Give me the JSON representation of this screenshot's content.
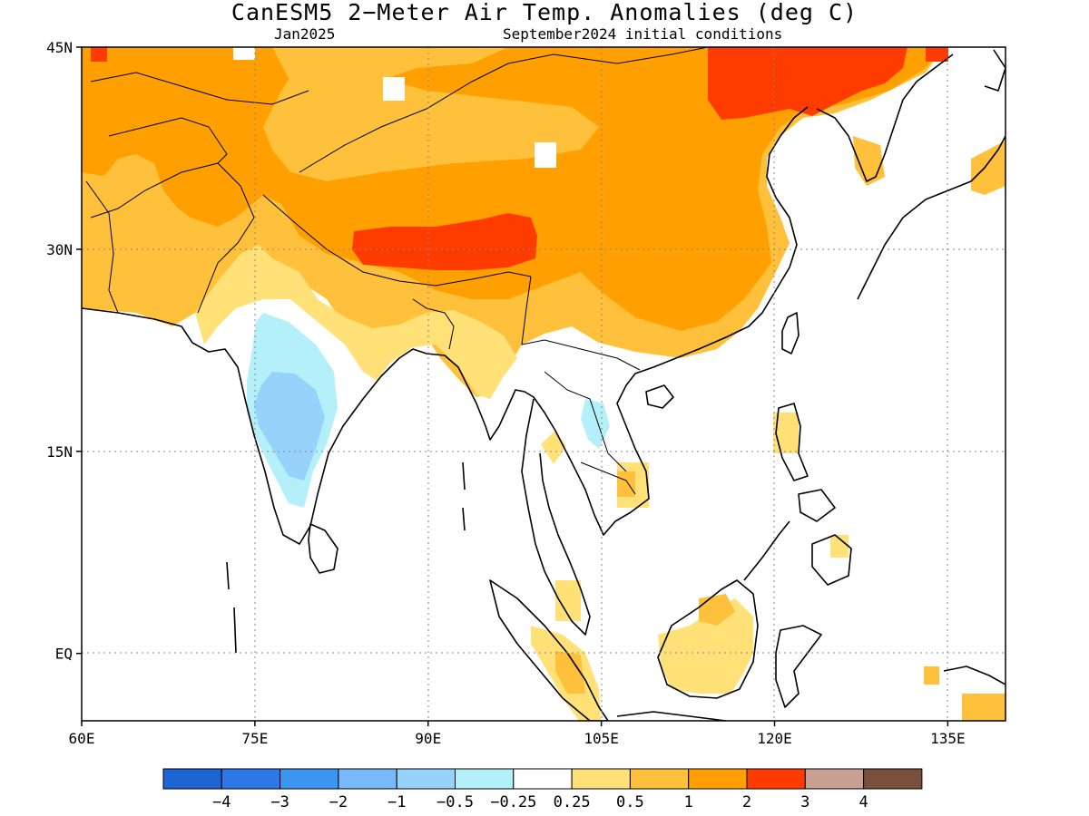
{
  "header": {
    "title": "CanESM5 2−Meter Air Temp. Anomalies (deg C)",
    "valid_month": "Jan2025",
    "init": "September2024 initial conditions"
  },
  "map": {
    "lat_labels": [
      {
        "text": "45N",
        "lat": 45
      },
      {
        "text": "30N",
        "lat": 30
      },
      {
        "text": "15N",
        "lat": 15
      },
      {
        "text": "EQ",
        "lat": 0
      }
    ],
    "lon_labels": [
      {
        "text": "60E",
        "lon": 60
      },
      {
        "text": "75E",
        "lon": 75
      },
      {
        "text": "90E",
        "lon": 90
      },
      {
        "text": "105E",
        "lon": 105
      },
      {
        "text": "120E",
        "lon": 120
      },
      {
        "text": "135E",
        "lon": 135
      }
    ],
    "lon_range": [
      60,
      140
    ],
    "lat_range": [
      -5,
      45
    ],
    "grid": true
  },
  "colorbar": {
    "colors": [
      "#1e64d2",
      "#2b78e6",
      "#3c96f0",
      "#78b9fa",
      "#96d2fa",
      "#b4f0fa",
      "#ffffff",
      "#ffe178",
      "#ffc03c",
      "#ffa000",
      "#ff3c00",
      "#c8a094",
      "#78503c"
    ],
    "labels": [
      "−4",
      "−3",
      "−2",
      "−1",
      "−0.5",
      "−0.25",
      "0.25",
      "0.5",
      "1",
      "2",
      "3",
      "4"
    ]
  }
}
